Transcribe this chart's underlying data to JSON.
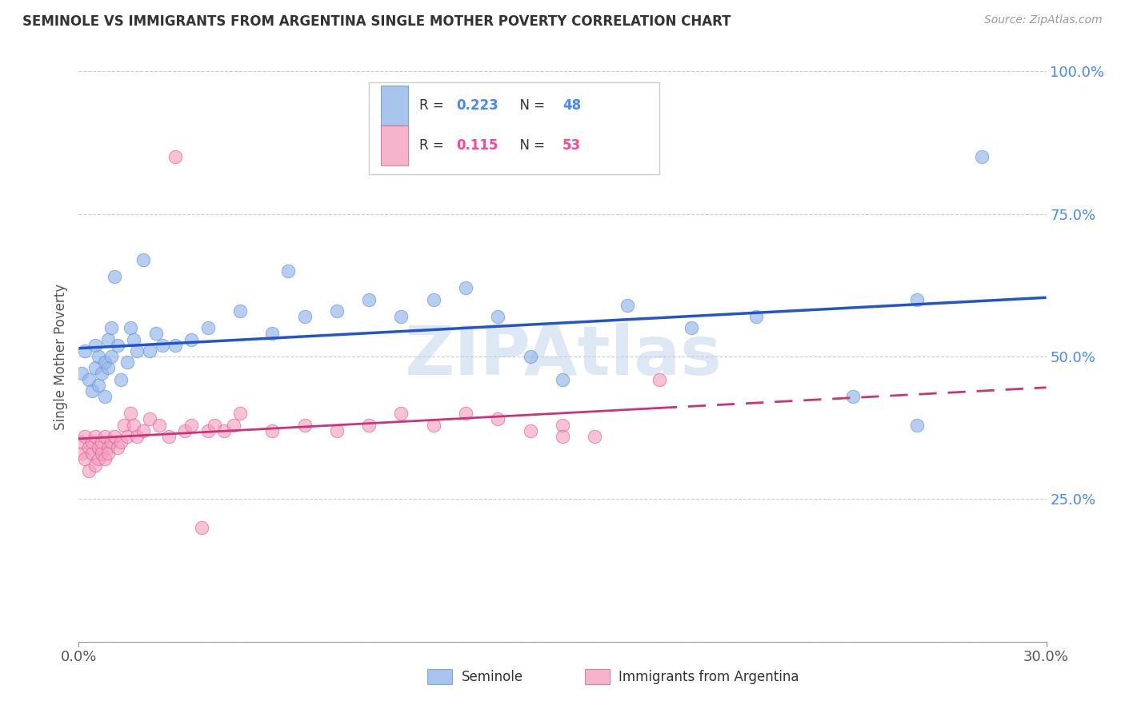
{
  "title": "SEMINOLE VS IMMIGRANTS FROM ARGENTINA SINGLE MOTHER POVERTY CORRELATION CHART",
  "source": "Source: ZipAtlas.com",
  "ylabel": "Single Mother Poverty",
  "yticks": [
    0.0,
    0.25,
    0.5,
    0.75,
    1.0
  ],
  "ytick_labels": [
    "",
    "25.0%",
    "50.0%",
    "75.0%",
    "100.0%"
  ],
  "xlim": [
    0.0,
    0.3
  ],
  "ylim": [
    0.0,
    1.0
  ],
  "seminole_color": "#92B4E8",
  "seminole_edge": "#6699DD",
  "argentina_color": "#F4A0C0",
  "argentina_edge": "#DD6699",
  "trend_blue": "#2255CC",
  "trend_pink": "#CC3377",
  "seminole_R": 0.223,
  "seminole_N": 48,
  "argentina_R": 0.115,
  "argentina_N": 53,
  "watermark": "ZIPAtlas",
  "watermark_color": "#aec6e8",
  "legend_label_1": "Seminole",
  "legend_label_2": "Immigrants from Argentina",
  "seminole_x": [
    0.001,
    0.002,
    0.003,
    0.004,
    0.005,
    0.005,
    0.006,
    0.006,
    0.007,
    0.008,
    0.008,
    0.009,
    0.009,
    0.01,
    0.01,
    0.011,
    0.012,
    0.013,
    0.015,
    0.016,
    0.017,
    0.018,
    0.02,
    0.022,
    0.024,
    0.026,
    0.03,
    0.035,
    0.04,
    0.05,
    0.06,
    0.065,
    0.07,
    0.08,
    0.09,
    0.1,
    0.11,
    0.12,
    0.13,
    0.14,
    0.15,
    0.17,
    0.19,
    0.21,
    0.24,
    0.26,
    0.28,
    0.26
  ],
  "seminole_y": [
    0.47,
    0.51,
    0.46,
    0.44,
    0.48,
    0.52,
    0.45,
    0.5,
    0.47,
    0.43,
    0.49,
    0.53,
    0.48,
    0.55,
    0.5,
    0.64,
    0.52,
    0.46,
    0.49,
    0.55,
    0.53,
    0.51,
    0.67,
    0.51,
    0.54,
    0.52,
    0.52,
    0.53,
    0.55,
    0.58,
    0.54,
    0.65,
    0.57,
    0.58,
    0.6,
    0.57,
    0.6,
    0.62,
    0.57,
    0.5,
    0.46,
    0.59,
    0.55,
    0.57,
    0.43,
    0.6,
    0.85,
    0.38
  ],
  "argentina_x": [
    0.001,
    0.001,
    0.002,
    0.002,
    0.003,
    0.003,
    0.004,
    0.004,
    0.005,
    0.005,
    0.006,
    0.006,
    0.007,
    0.007,
    0.008,
    0.008,
    0.009,
    0.009,
    0.01,
    0.011,
    0.012,
    0.013,
    0.014,
    0.015,
    0.016,
    0.017,
    0.018,
    0.02,
    0.022,
    0.025,
    0.028,
    0.03,
    0.033,
    0.035,
    0.038,
    0.04,
    0.042,
    0.045,
    0.048,
    0.05,
    0.06,
    0.07,
    0.08,
    0.09,
    0.1,
    0.11,
    0.12,
    0.13,
    0.14,
    0.15,
    0.16,
    0.18,
    0.15
  ],
  "argentina_y": [
    0.33,
    0.35,
    0.32,
    0.36,
    0.34,
    0.3,
    0.33,
    0.35,
    0.31,
    0.36,
    0.32,
    0.34,
    0.33,
    0.35,
    0.32,
    0.36,
    0.34,
    0.33,
    0.35,
    0.36,
    0.34,
    0.35,
    0.38,
    0.36,
    0.4,
    0.38,
    0.36,
    0.37,
    0.39,
    0.38,
    0.36,
    0.85,
    0.37,
    0.38,
    0.2,
    0.37,
    0.38,
    0.37,
    0.38,
    0.4,
    0.37,
    0.38,
    0.37,
    0.38,
    0.4,
    0.38,
    0.4,
    0.39,
    0.37,
    0.38,
    0.36,
    0.46,
    0.36
  ]
}
